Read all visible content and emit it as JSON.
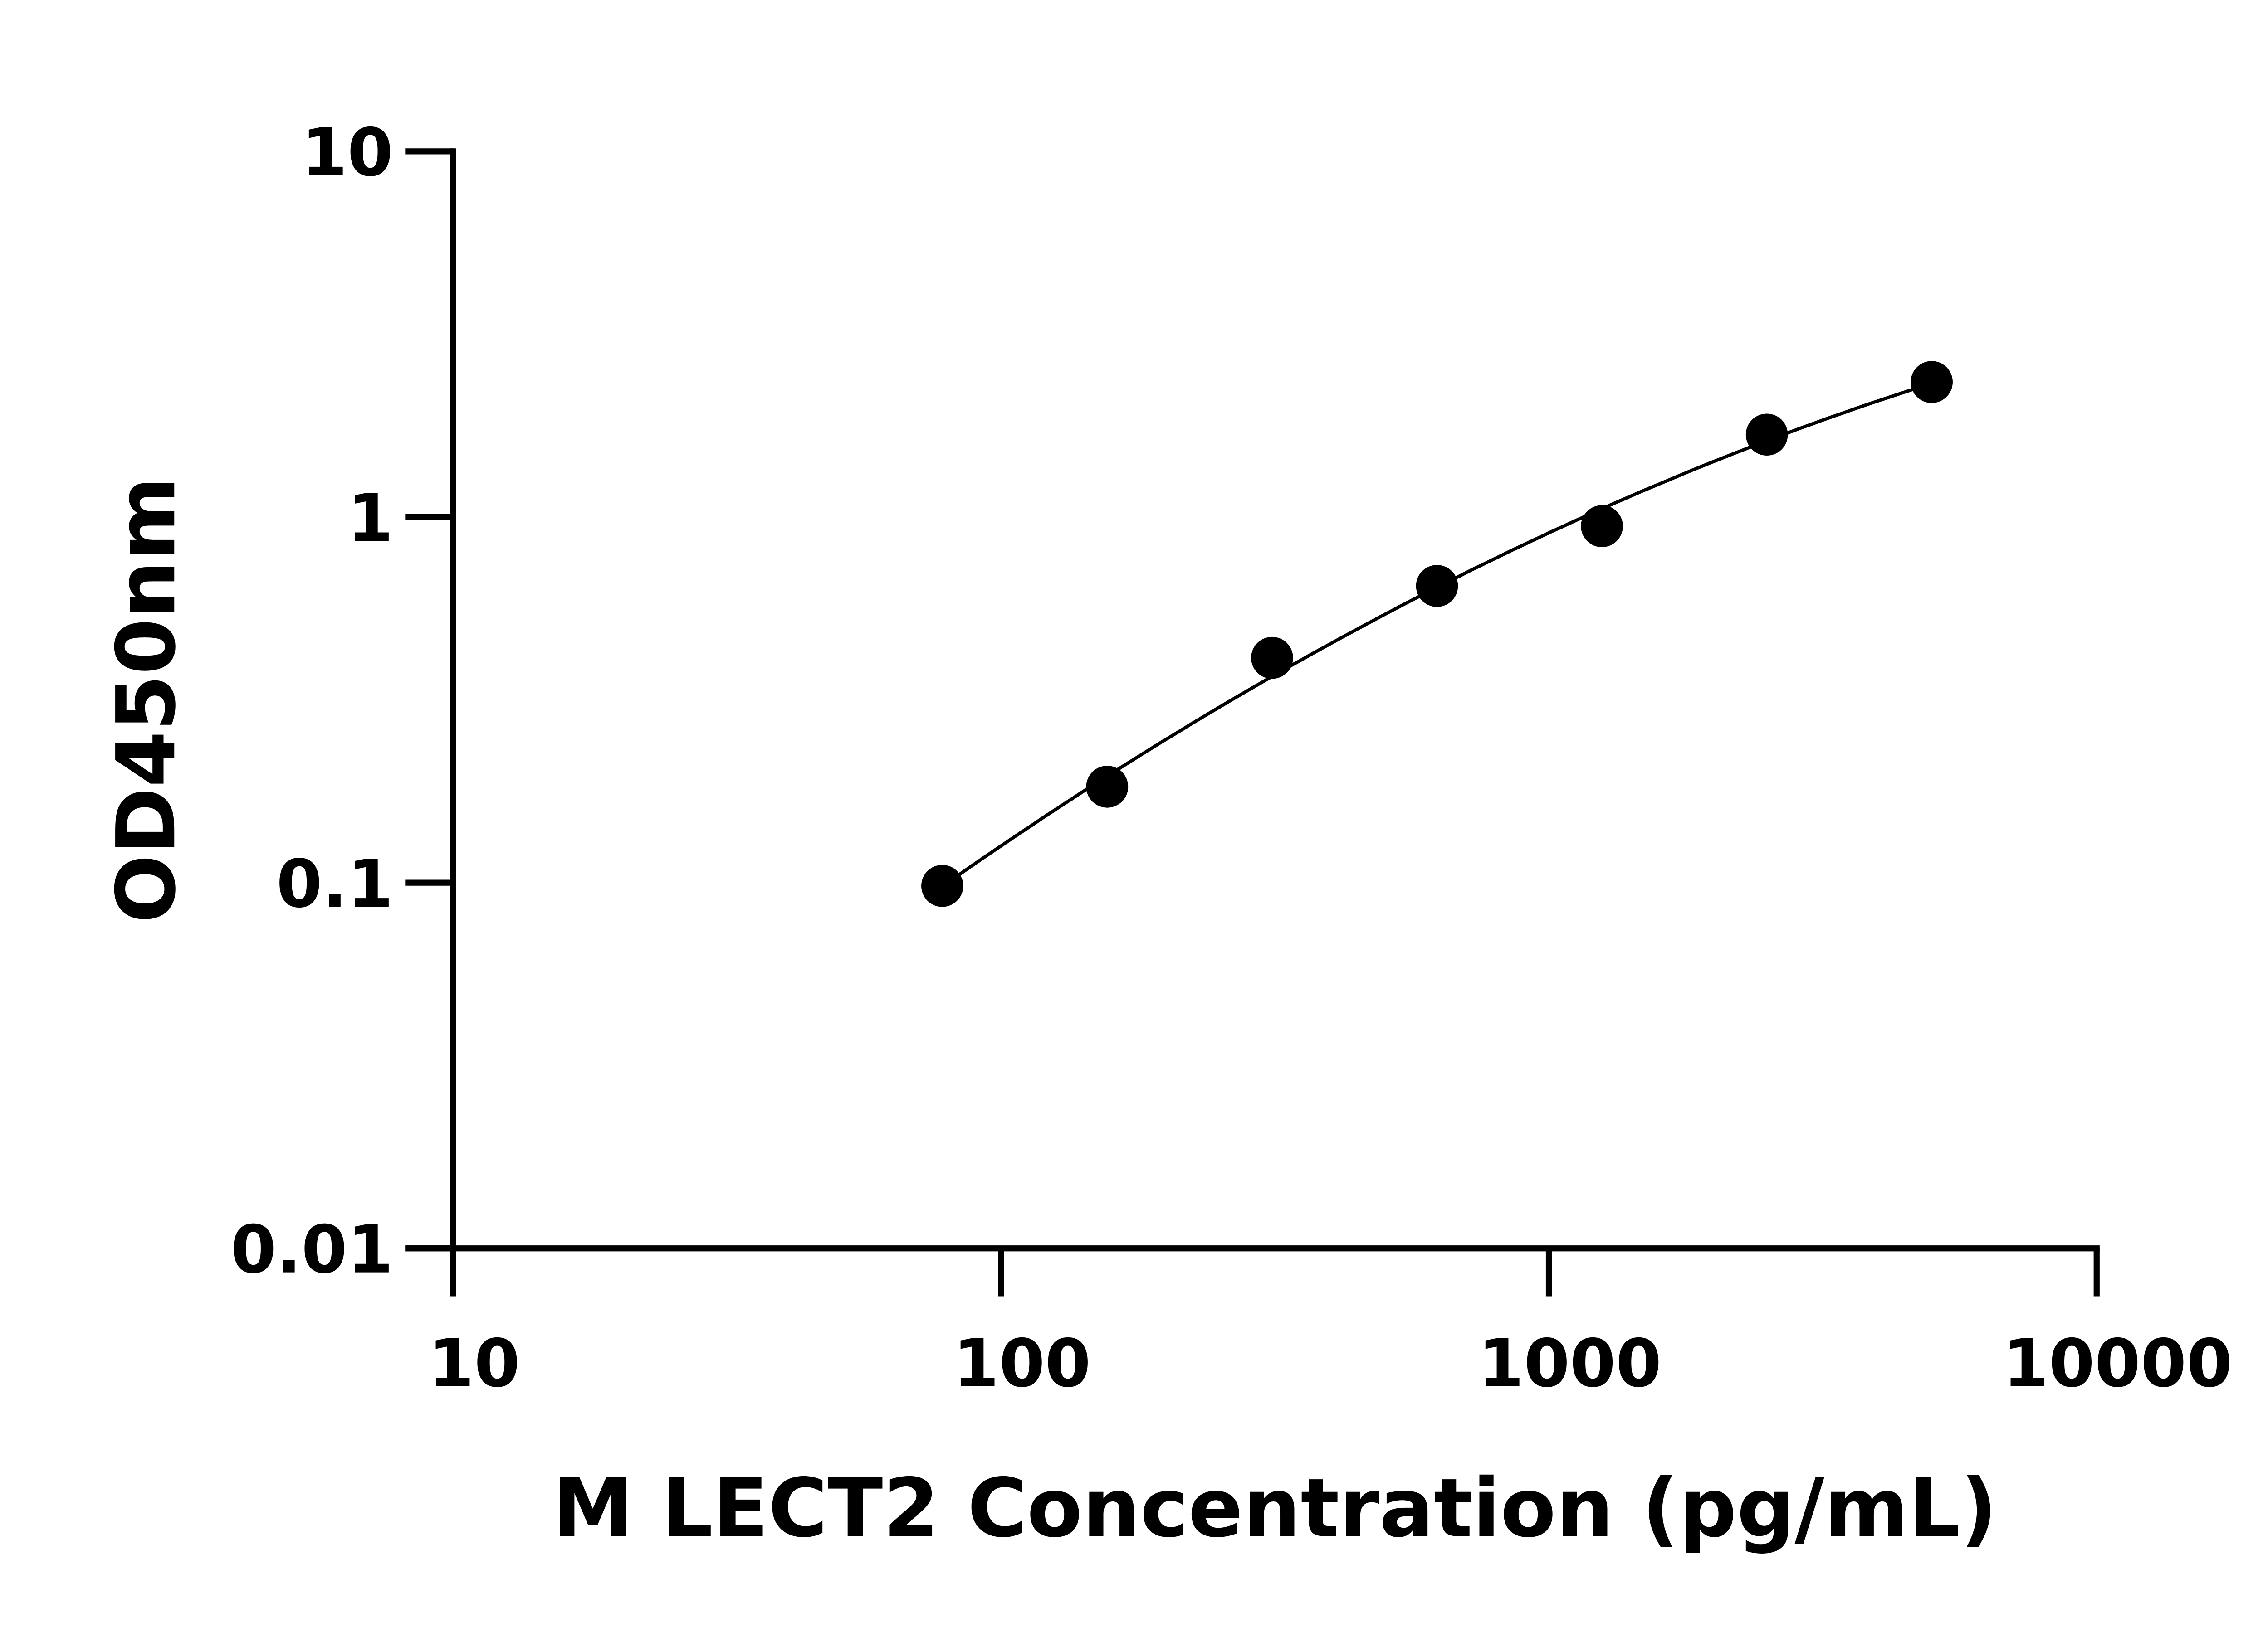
{
  "chart_data": {
    "type": "scatter",
    "title": "",
    "xlabel": "M LECT2 Concentration (pg/mL)",
    "ylabel": "OD450nm",
    "x_scale": "log",
    "y_scale": "log",
    "xlim": [
      10,
      10000
    ],
    "ylim": [
      0.01,
      10
    ],
    "x_ticks": [
      "10",
      "100",
      "1000",
      "10000"
    ],
    "y_ticks": [
      "0.01",
      "0.1",
      "1",
      "10"
    ],
    "grid": false,
    "legend": "none",
    "marker_color": "#000000",
    "fit_curve": true,
    "series": [
      {
        "x": [
          78.125,
          156.25,
          312.5,
          625,
          1250,
          2500,
          5000
        ],
        "y": [
          0.098,
          0.183,
          0.412,
          0.648,
          0.944,
          1.68,
          2.34
        ]
      }
    ]
  }
}
